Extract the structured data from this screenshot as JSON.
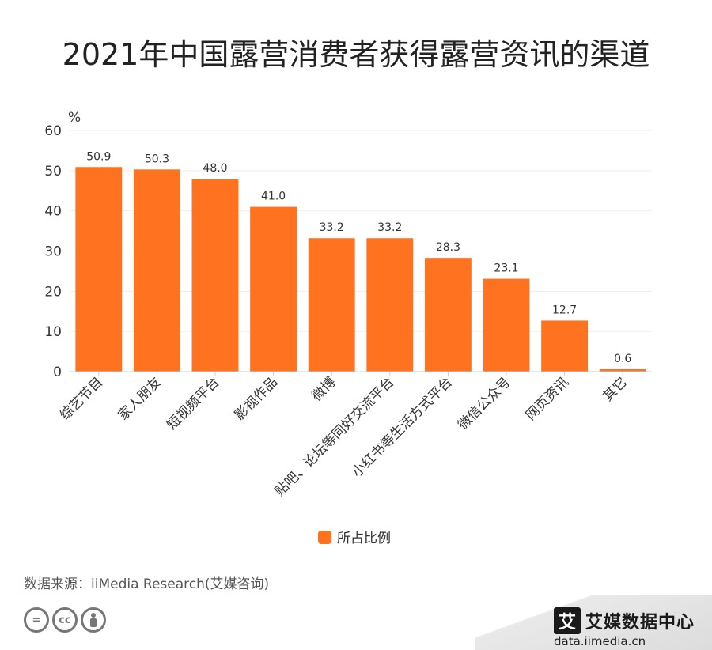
{
  "title": "2021年中国露营消费者获得露营资讯的渠道",
  "source": "数据来源：iiMedia Research(艾媒咨询)",
  "brand": {
    "mark": "艾",
    "name": "艾媒数据中心",
    "url": "data.iimedia.cn"
  },
  "license_icons": [
    "equals-icon",
    "cc-icon",
    "person-icon"
  ],
  "colors": {
    "bar": "#FF7320",
    "axis": "#cccccc",
    "grid": "#eeeeee"
  },
  "chart_data": {
    "type": "bar",
    "categories": [
      "综艺节目",
      "家人朋友",
      "短视频平台",
      "影视作品",
      "微博",
      "贴吧、论坛等同好交流平台",
      "小红书等生活方式平台",
      "微信公众号",
      "网页资讯",
      "其它"
    ],
    "series": [
      {
        "name": "所占比例",
        "values": [
          50.9,
          50.3,
          48.0,
          41.0,
          33.2,
          33.2,
          28.3,
          23.1,
          12.7,
          0.6
        ]
      }
    ],
    "data_labels": [
      "50.9",
      "50.3",
      "48.0",
      "41.0",
      "33.2",
      "33.2",
      "28.3",
      "23.1",
      "12.7",
      "0.6"
    ],
    "ylabel": "%",
    "ylim": [
      0,
      60
    ],
    "yticks": [
      "0",
      "10",
      "20",
      "30",
      "40",
      "50",
      "60"
    ],
    "grid": true,
    "legend": "bottom-center"
  }
}
